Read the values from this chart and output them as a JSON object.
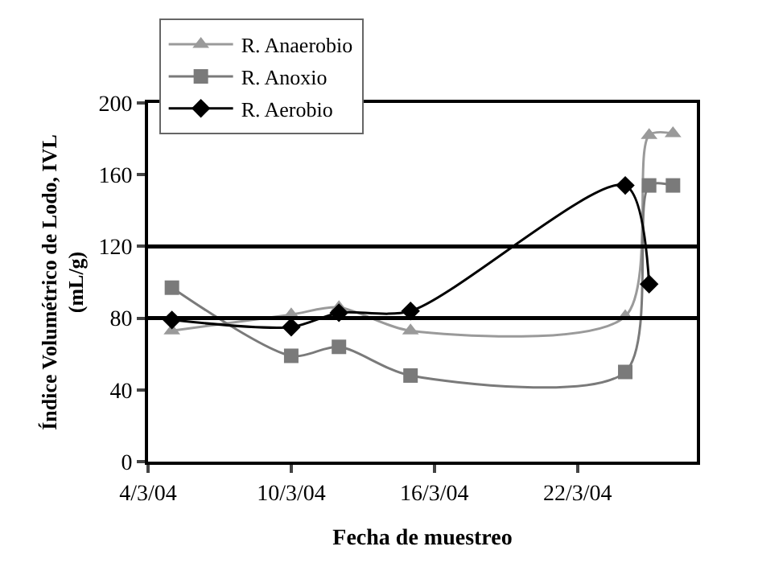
{
  "chart_data": {
    "type": "line",
    "xlabel": "Fecha de muestreo",
    "ylabel": "Índice Volumétrico de Lodo, IVL\n(mL/g)",
    "x": [
      "--03-05",
      "--03-10",
      "--03-12",
      "--03-15",
      "--03-24",
      "--03-25",
      "--03-26"
    ],
    "series": [
      {
        "name": "R. Anaerobio",
        "color": "#9a9a9a",
        "marker": "triangle",
        "values": [
          73,
          82,
          86,
          73,
          81,
          182,
          183
        ]
      },
      {
        "name": "R. Anoxio",
        "color": "#7a7a7a",
        "marker": "square",
        "values": [
          97,
          59,
          64,
          48,
          50,
          154,
          154
        ]
      },
      {
        "name": "R. Aerobio",
        "color": "#000000",
        "marker": "diamond",
        "x": [
          "--03-05",
          "--03-10",
          "--03-12",
          "--03-15",
          "--03-24",
          "--03-25"
        ],
        "values": [
          79,
          75,
          83,
          84,
          154,
          99
        ]
      }
    ],
    "xlim": [
      "--03-04",
      "--03-27"
    ],
    "xticks": [
      {
        "value": "--03-04",
        "label": "4/3/04"
      },
      {
        "value": "--03-10",
        "label": "10/3/04"
      },
      {
        "value": "--03-16",
        "label": "16/3/04"
      },
      {
        "value": "--03-22",
        "label": "22/3/04"
      }
    ],
    "ylim": [
      0,
      200
    ],
    "yticks": [
      0,
      40,
      80,
      120,
      160,
      200
    ],
    "ref_lines": [
      {
        "axis": "y",
        "value": 120,
        "color": "#000000"
      },
      {
        "axis": "y",
        "value": 80,
        "color": "#000000"
      }
    ],
    "legend": "top left"
  }
}
